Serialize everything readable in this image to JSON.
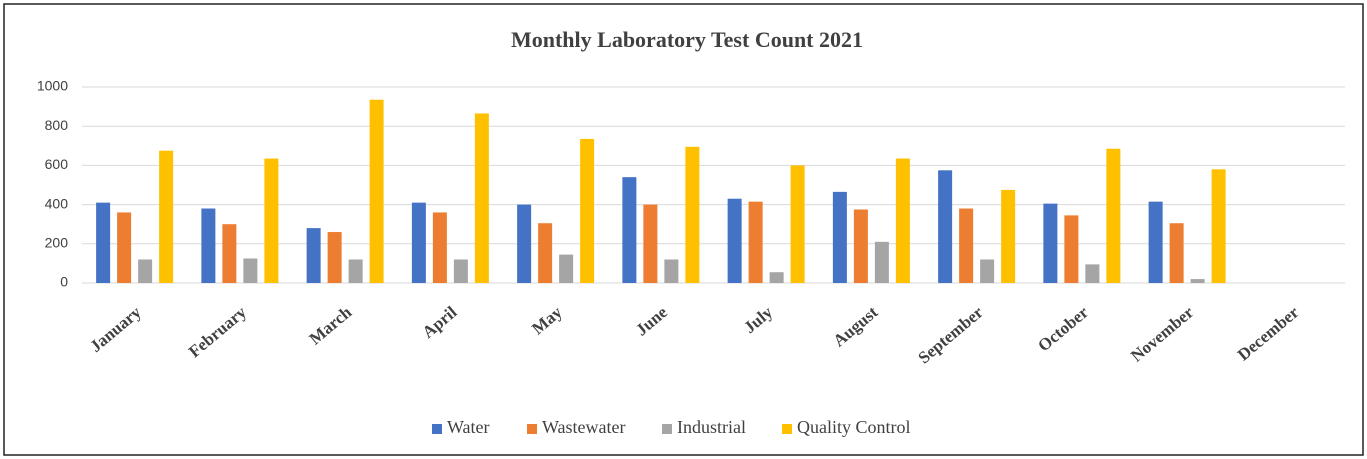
{
  "chart_data": {
    "type": "bar",
    "title": "Monthly Laboratory Test Count 2021",
    "categories": [
      "January",
      "February",
      "March",
      "April",
      "May",
      "June",
      "July",
      "August",
      "September",
      "October",
      "November",
      "December"
    ],
    "series": [
      {
        "name": "Water",
        "color": "#4472c4",
        "values": [
          410,
          380,
          280,
          410,
          400,
          540,
          430,
          465,
          575,
          405,
          415,
          null
        ]
      },
      {
        "name": "Wastewater",
        "color": "#ed7d31",
        "values": [
          360,
          300,
          260,
          360,
          305,
          400,
          415,
          375,
          380,
          345,
          305,
          null
        ]
      },
      {
        "name": "Industrial",
        "color": "#a5a5a5",
        "values": [
          120,
          125,
          120,
          120,
          145,
          120,
          55,
          210,
          120,
          95,
          20,
          null
        ]
      },
      {
        "name": "Quality Control",
        "color": "#ffc000",
        "values": [
          675,
          635,
          935,
          865,
          735,
          695,
          600,
          635,
          475,
          685,
          580,
          null
        ]
      }
    ],
    "ylim": [
      0,
      1000
    ],
    "yticks": [
      0,
      200,
      400,
      600,
      800,
      1000
    ],
    "grid": true,
    "legend": "bottom"
  }
}
